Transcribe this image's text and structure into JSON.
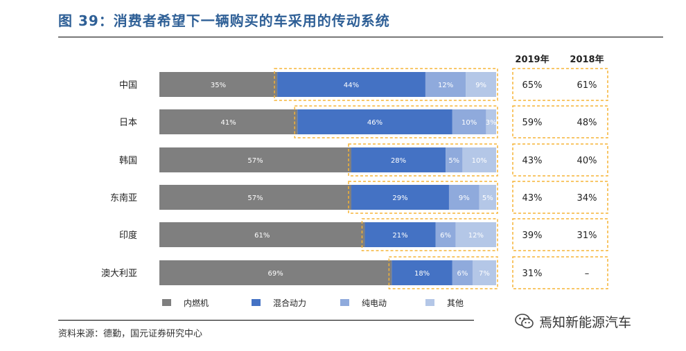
{
  "title": "图 39：消费者希望下一辆购买的车采用的传动系统",
  "source": "资料来源：德勤，国元证券研究中心",
  "watermark": {
    "text": "焉知新能源汽车",
    "icon": "wechat-icon"
  },
  "colors": {
    "title": "#2e5f96",
    "ice": "#7f7f7f",
    "hybrid": "#4472c4",
    "bev": "#8faadc",
    "other": "#b4c7e7",
    "highlight": "#f5b335"
  },
  "chart_data": {
    "type": "bar",
    "orientation": "horizontal",
    "stacked": true,
    "categories": [
      "中国",
      "日本",
      "韩国",
      "东南亚",
      "印度",
      "澳大利亚"
    ],
    "series": [
      {
        "name": "内燃机",
        "values": [
          35,
          41,
          57,
          57,
          61,
          69
        ]
      },
      {
        "name": "混合动力",
        "values": [
          44,
          46,
          28,
          29,
          21,
          18
        ]
      },
      {
        "name": "纯电动",
        "values": [
          12,
          10,
          5,
          9,
          6,
          6
        ]
      },
      {
        "name": "其他",
        "values": [
          9,
          3,
          10,
          5,
          12,
          7
        ]
      }
    ],
    "legend_position": "bottom",
    "side_table": {
      "columns": [
        "2019年",
        "2018年"
      ],
      "rows": [
        [
          "65%",
          "61%"
        ],
        [
          "59%",
          "48%"
        ],
        [
          "43%",
          "40%"
        ],
        [
          "43%",
          "34%"
        ],
        [
          "39%",
          "31%"
        ],
        [
          "31%",
          "–"
        ]
      ]
    }
  }
}
